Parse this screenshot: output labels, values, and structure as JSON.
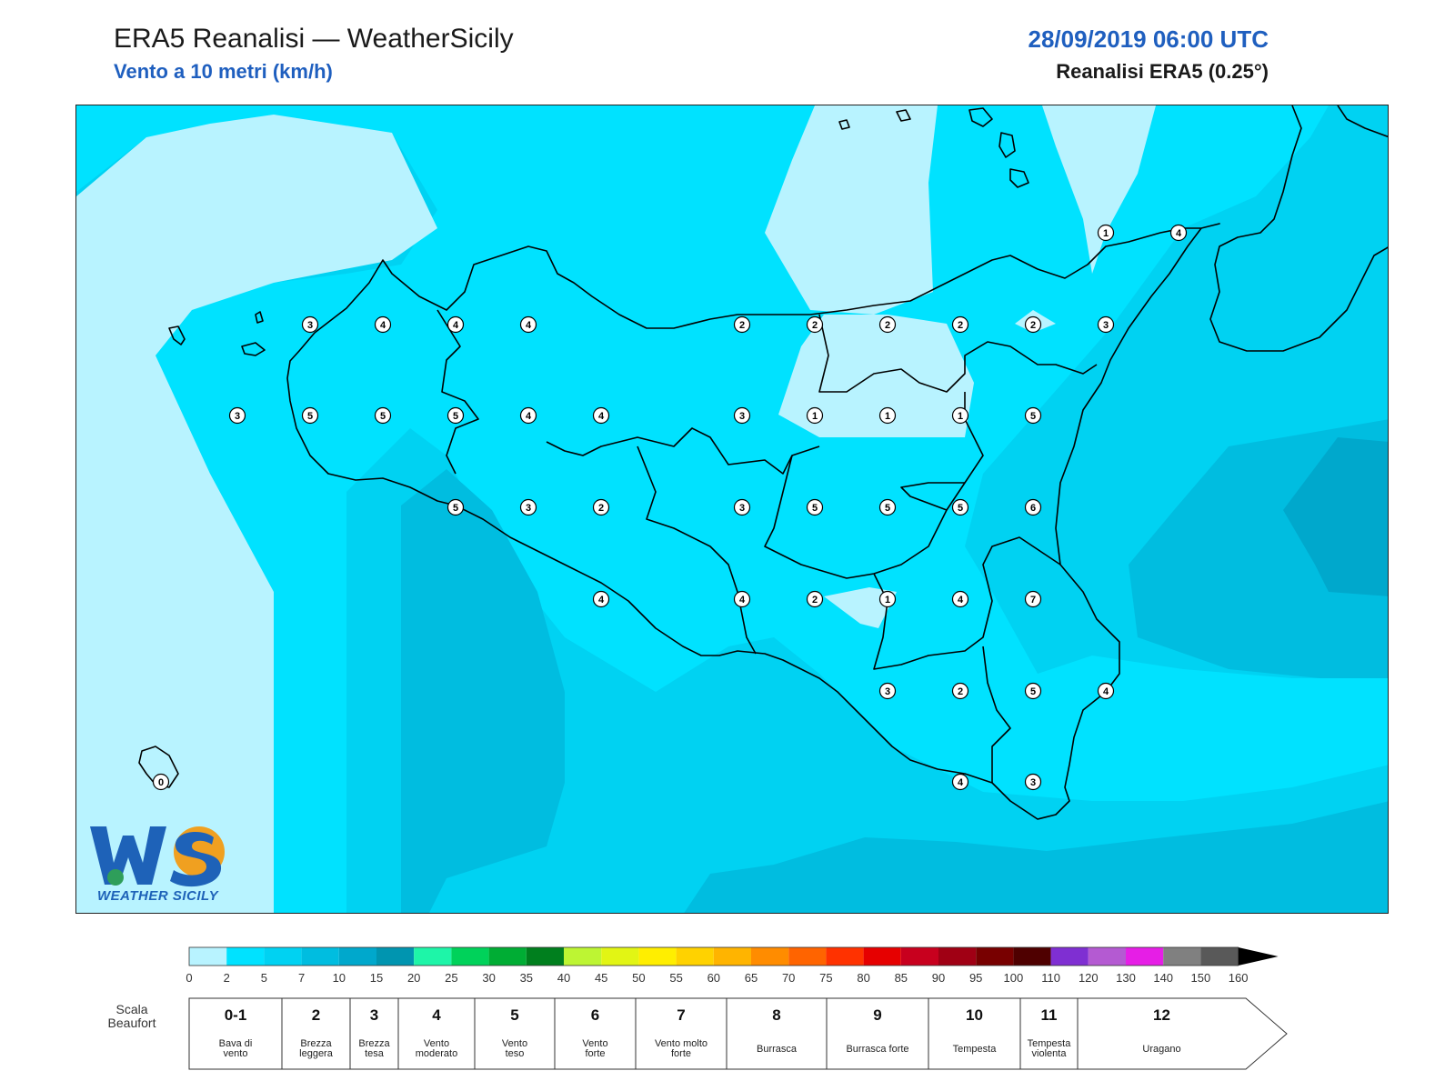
{
  "header": {
    "title": "ERA5 Reanalisi — WeatherSicily",
    "subtitle": "Vento a 10 metri (km/h)",
    "datetime": "28/09/2019 06:00 UTC",
    "model": "Reanalisi ERA5 (0.25°)"
  },
  "logo": {
    "text": "WEATHER SICILY"
  },
  "station_values": [
    {
      "v": 3,
      "c": [
        340,
        356
      ]
    },
    {
      "v": 4,
      "c": [
        420,
        356
      ]
    },
    {
      "v": 4,
      "c": [
        500,
        356
      ]
    },
    {
      "v": 4,
      "c": [
        580,
        356
      ]
    },
    {
      "v": 2,
      "c": [
        815,
        356
      ]
    },
    {
      "v": 2,
      "c": [
        895,
        356
      ]
    },
    {
      "v": 2,
      "c": [
        975,
        356
      ]
    },
    {
      "v": 2,
      "c": [
        1055,
        356
      ]
    },
    {
      "v": 2,
      "c": [
        1135,
        356
      ]
    },
    {
      "v": 3,
      "c": [
        1215,
        356
      ]
    },
    {
      "v": 1,
      "c": [
        1215,
        255
      ]
    },
    {
      "v": 4,
      "c": [
        1295,
        255
      ]
    },
    {
      "v": 3,
      "c": [
        260,
        456
      ]
    },
    {
      "v": 5,
      "c": [
        340,
        456
      ]
    },
    {
      "v": 5,
      "c": [
        420,
        456
      ]
    },
    {
      "v": 5,
      "c": [
        500,
        456
      ]
    },
    {
      "v": 4,
      "c": [
        580,
        456
      ]
    },
    {
      "v": 4,
      "c": [
        660,
        456
      ]
    },
    {
      "v": 3,
      "c": [
        815,
        456
      ]
    },
    {
      "v": 1,
      "c": [
        895,
        456
      ]
    },
    {
      "v": 1,
      "c": [
        975,
        456
      ]
    },
    {
      "v": 1,
      "c": [
        1055,
        456
      ]
    },
    {
      "v": 5,
      "c": [
        1135,
        456
      ]
    },
    {
      "v": 5,
      "c": [
        500,
        557
      ]
    },
    {
      "v": 3,
      "c": [
        580,
        557
      ]
    },
    {
      "v": 2,
      "c": [
        660,
        557
      ]
    },
    {
      "v": 3,
      "c": [
        815,
        557
      ]
    },
    {
      "v": 5,
      "c": [
        895,
        557
      ]
    },
    {
      "v": 5,
      "c": [
        975,
        557
      ]
    },
    {
      "v": 5,
      "c": [
        1055,
        557
      ]
    },
    {
      "v": 6,
      "c": [
        1135,
        557
      ]
    },
    {
      "v": 4,
      "c": [
        660,
        658
      ]
    },
    {
      "v": 4,
      "c": [
        815,
        658
      ]
    },
    {
      "v": 2,
      "c": [
        895,
        658
      ]
    },
    {
      "v": 1,
      "c": [
        975,
        658
      ]
    },
    {
      "v": 4,
      "c": [
        1055,
        658
      ]
    },
    {
      "v": 7,
      "c": [
        1135,
        658
      ]
    },
    {
      "v": 3,
      "c": [
        975,
        759
      ]
    },
    {
      "v": 2,
      "c": [
        1055,
        759
      ]
    },
    {
      "v": 5,
      "c": [
        1135,
        759
      ]
    },
    {
      "v": 4,
      "c": [
        1215,
        759
      ]
    },
    {
      "v": 4,
      "c": [
        1055,
        859
      ]
    },
    {
      "v": 3,
      "c": [
        1135,
        859
      ]
    },
    {
      "v": 0,
      "c": [
        176,
        859
      ]
    }
  ],
  "colorbar": {
    "ticks": [
      "0",
      "2",
      "5",
      "7",
      "10",
      "15",
      "20",
      "25",
      "30",
      "35",
      "40",
      "45",
      "50",
      "55",
      "60",
      "65",
      "70",
      "75",
      "80",
      "85",
      "90",
      "95",
      "100",
      "110",
      "120",
      "130",
      "140",
      "150",
      "160"
    ],
    "colors": [
      "#b8f3ff",
      "#00e2ff",
      "#00d2f2",
      "#00bde0",
      "#00a8cc",
      "#0095b0",
      "#1ef5a8",
      "#00d25a",
      "#00ad34",
      "#007f1e",
      "#bdf533",
      "#e2f514",
      "#ffee00",
      "#ffd200",
      "#ffb400",
      "#ff8c00",
      "#ff6400",
      "#ff3200",
      "#e60000",
      "#c8001e",
      "#a00014",
      "#780000",
      "#4f0000",
      "#7f2fd2",
      "#b45ad2",
      "#e61ee6",
      "#808080",
      "#595959",
      "#000000",
      "#7f4628",
      "#c8824b"
    ]
  },
  "beaufort": {
    "label": "Scala Beaufort",
    "classes": [
      {
        "num": "0-1",
        "name": "Bava di vento"
      },
      {
        "num": "2",
        "name": "Brezza leggera"
      },
      {
        "num": "3",
        "name": "Brezza tesa"
      },
      {
        "num": "4",
        "name": "Vento moderato"
      },
      {
        "num": "5",
        "name": "Vento teso"
      },
      {
        "num": "6",
        "name": "Vento forte"
      },
      {
        "num": "7",
        "name": "Vento molto forte"
      },
      {
        "num": "8",
        "name": "Burrasca"
      },
      {
        "num": "9",
        "name": "Burrasca forte"
      },
      {
        "num": "10",
        "name": "Tempesta"
      },
      {
        "num": "11",
        "name": "Tempesta violenta"
      },
      {
        "num": "12",
        "name": "Uragano"
      }
    ]
  }
}
